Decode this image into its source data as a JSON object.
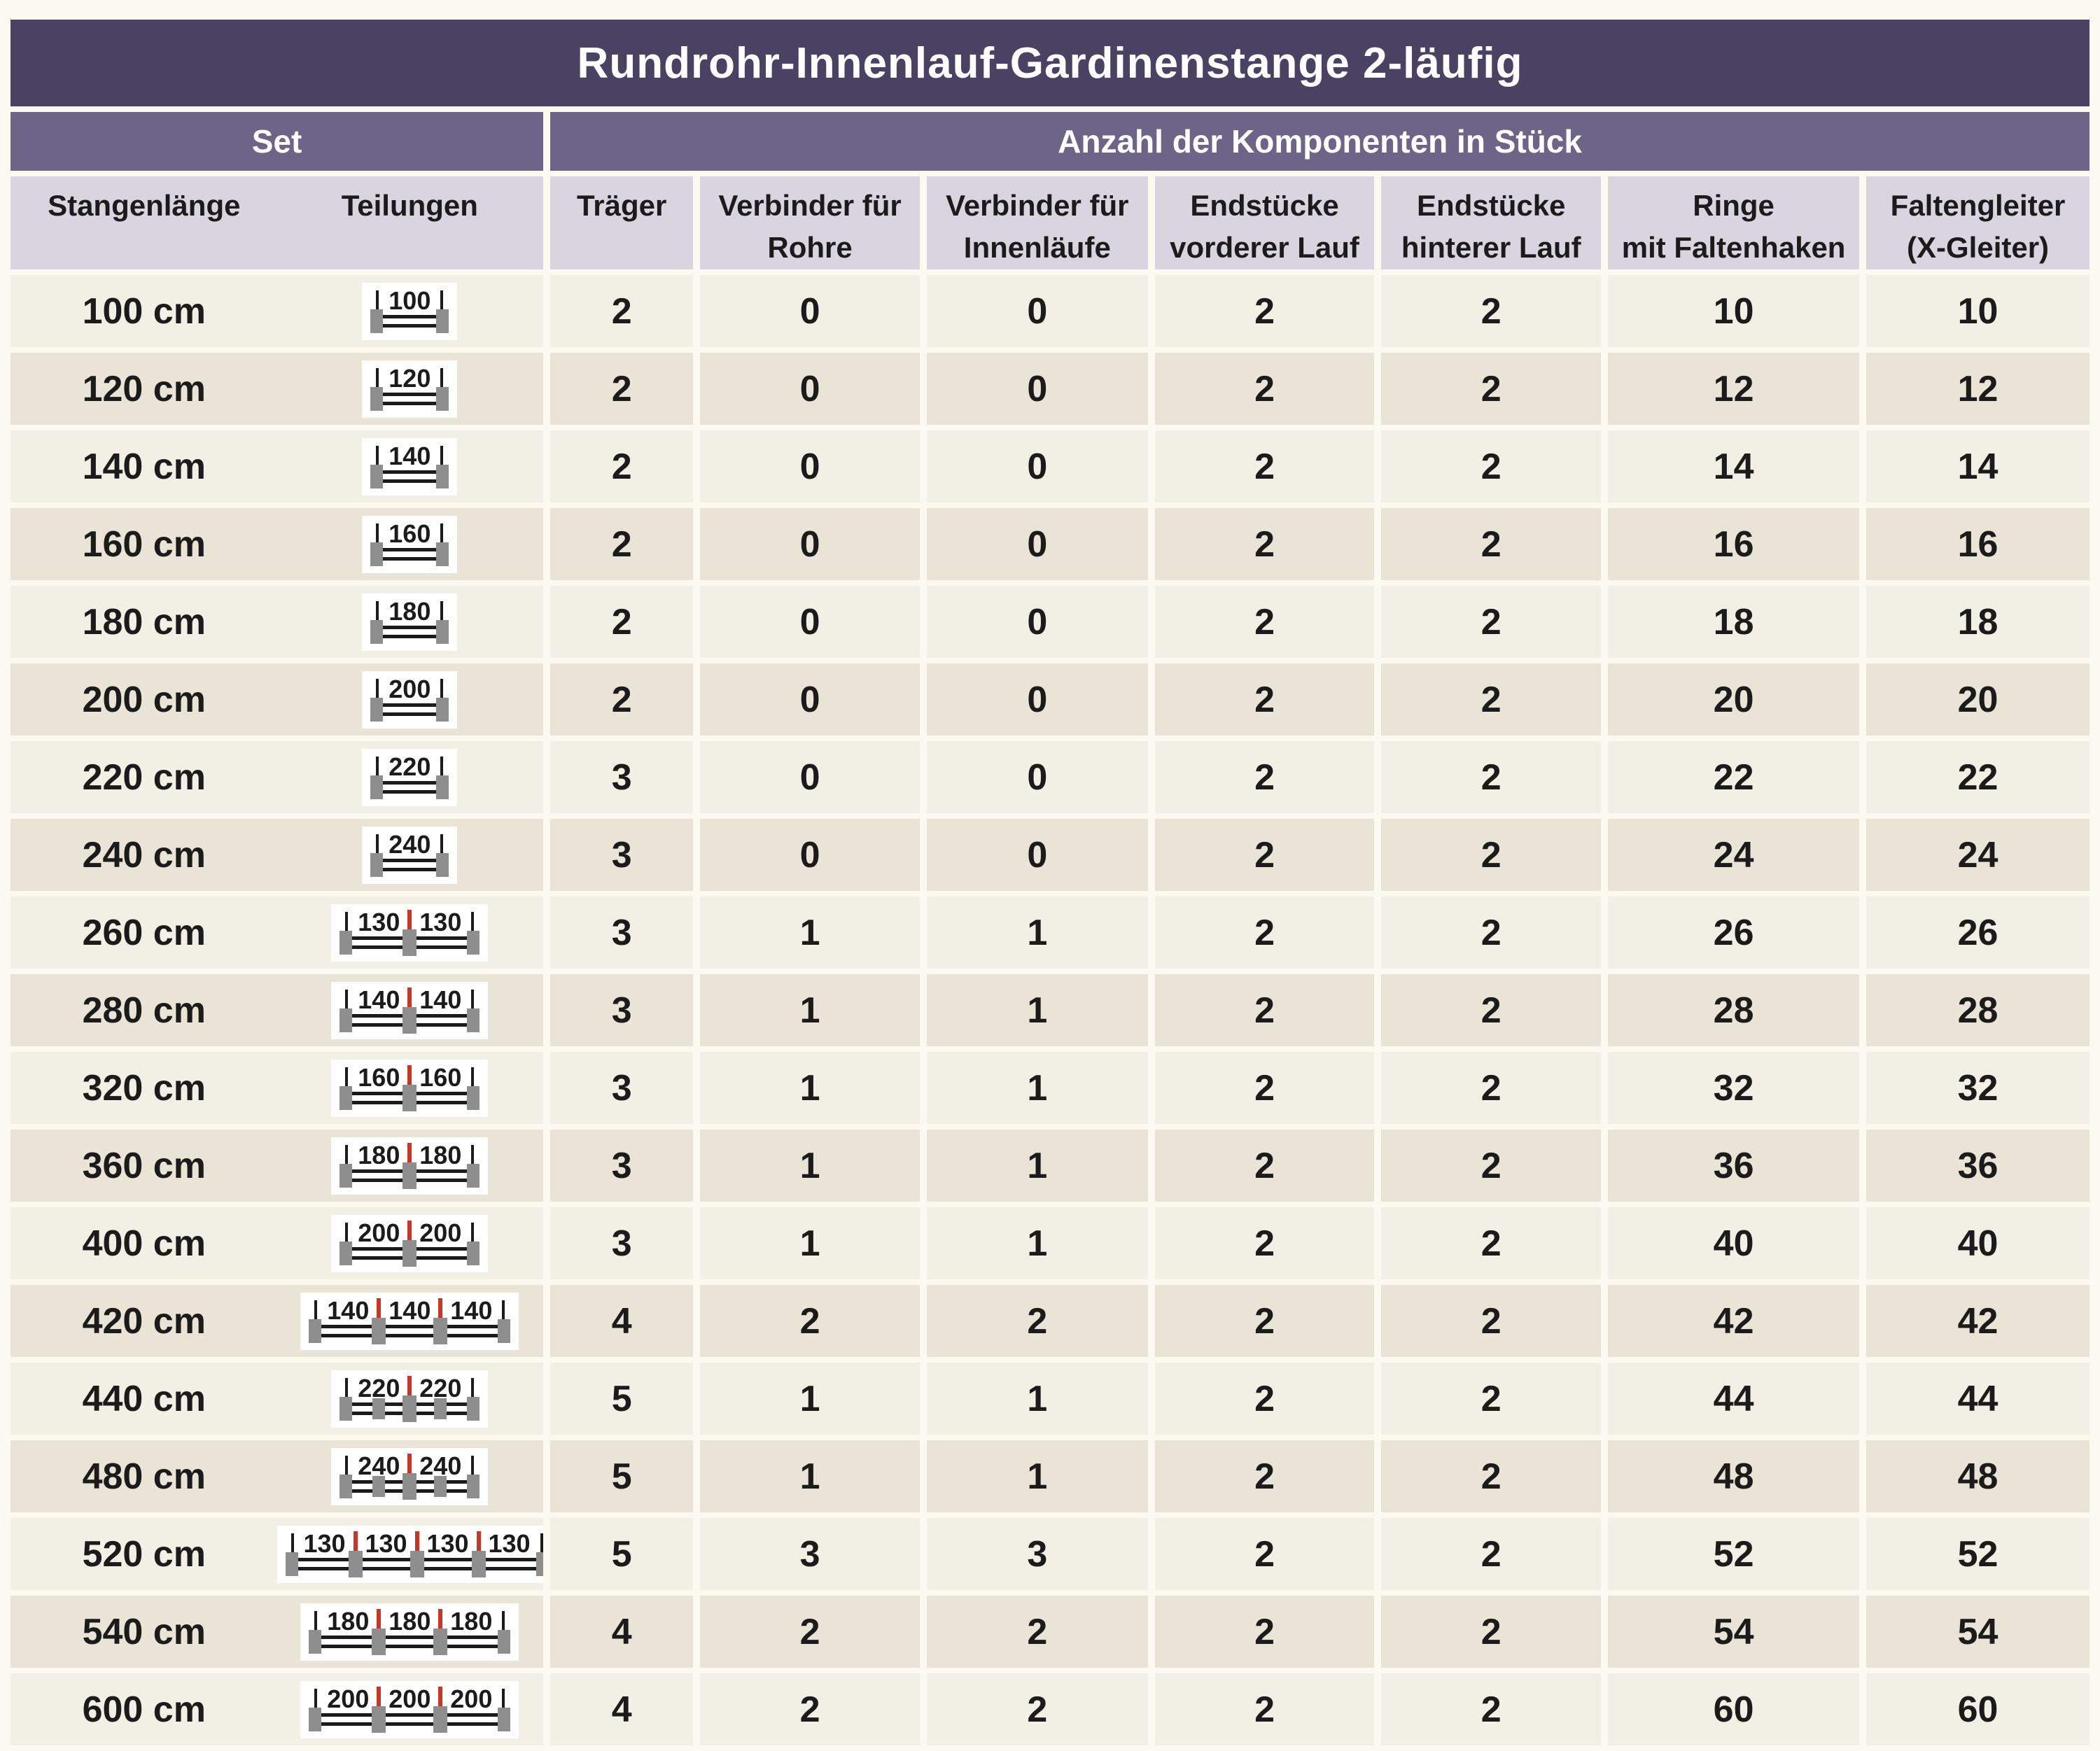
{
  "title": "Rundrohr-Innenlauf-Gardinenstange 2-läufig",
  "header_bands": {
    "set": "Set",
    "components": "Anzahl der Komponenten in Stück"
  },
  "set_columns": {
    "length": "Stangenlänge",
    "divisions": "Teilungen"
  },
  "component_columns": [
    {
      "line1": "Träger",
      "line2": ""
    },
    {
      "line1": "Verbinder für",
      "line2": "Rohre"
    },
    {
      "line1": "Verbinder für",
      "line2": "Innenläufe"
    },
    {
      "line1": "Endstücke",
      "line2": "vorderer Lauf"
    },
    {
      "line1": "Endstücke",
      "line2": "hinterer Lauf"
    },
    {
      "line1": "Ringe",
      "line2": "mit Faltenhaken"
    },
    {
      "line1": "Faltengleiter",
      "line2": "(X-Gleiter)"
    }
  ],
  "chart_data": {
    "type": "table",
    "title": "Rundrohr-Innenlauf-Gardinenstange 2-läufig",
    "column_groups": [
      "Set",
      "Anzahl der Komponenten in Stück"
    ],
    "count_columns": [
      "Träger",
      "Verbinder für Rohre",
      "Verbinder für Innenläufe",
      "Endstücke vorderer Lauf",
      "Endstücke hinterer Lauf",
      "Ringe mit Faltenhaken",
      "Faltengleiter (X-Gleiter)"
    ],
    "rows": [
      {
        "length": "100 cm",
        "segments": [
          100
        ],
        "mid_supports": false,
        "counts": [
          2,
          0,
          0,
          2,
          2,
          10,
          10
        ]
      },
      {
        "length": "120 cm",
        "segments": [
          120
        ],
        "mid_supports": false,
        "counts": [
          2,
          0,
          0,
          2,
          2,
          12,
          12
        ]
      },
      {
        "length": "140 cm",
        "segments": [
          140
        ],
        "mid_supports": false,
        "counts": [
          2,
          0,
          0,
          2,
          2,
          14,
          14
        ]
      },
      {
        "length": "160 cm",
        "segments": [
          160
        ],
        "mid_supports": false,
        "counts": [
          2,
          0,
          0,
          2,
          2,
          16,
          16
        ]
      },
      {
        "length": "180 cm",
        "segments": [
          180
        ],
        "mid_supports": false,
        "counts": [
          2,
          0,
          0,
          2,
          2,
          18,
          18
        ]
      },
      {
        "length": "200 cm",
        "segments": [
          200
        ],
        "mid_supports": false,
        "counts": [
          2,
          0,
          0,
          2,
          2,
          20,
          20
        ]
      },
      {
        "length": "220 cm",
        "segments": [
          220
        ],
        "mid_supports": false,
        "counts": [
          3,
          0,
          0,
          2,
          2,
          22,
          22
        ]
      },
      {
        "length": "240 cm",
        "segments": [
          240
        ],
        "mid_supports": false,
        "counts": [
          3,
          0,
          0,
          2,
          2,
          24,
          24
        ]
      },
      {
        "length": "260 cm",
        "segments": [
          130,
          130
        ],
        "mid_supports": false,
        "counts": [
          3,
          1,
          1,
          2,
          2,
          26,
          26
        ]
      },
      {
        "length": "280 cm",
        "segments": [
          140,
          140
        ],
        "mid_supports": false,
        "counts": [
          3,
          1,
          1,
          2,
          2,
          28,
          28
        ]
      },
      {
        "length": "320 cm",
        "segments": [
          160,
          160
        ],
        "mid_supports": false,
        "counts": [
          3,
          1,
          1,
          2,
          2,
          32,
          32
        ]
      },
      {
        "length": "360 cm",
        "segments": [
          180,
          180
        ],
        "mid_supports": false,
        "counts": [
          3,
          1,
          1,
          2,
          2,
          36,
          36
        ]
      },
      {
        "length": "400 cm",
        "segments": [
          200,
          200
        ],
        "mid_supports": false,
        "counts": [
          3,
          1,
          1,
          2,
          2,
          40,
          40
        ]
      },
      {
        "length": "420 cm",
        "segments": [
          140,
          140,
          140
        ],
        "mid_supports": false,
        "counts": [
          4,
          2,
          2,
          2,
          2,
          42,
          42
        ]
      },
      {
        "length": "440 cm",
        "segments": [
          220,
          220
        ],
        "mid_supports": true,
        "counts": [
          5,
          1,
          1,
          2,
          2,
          44,
          44
        ]
      },
      {
        "length": "480 cm",
        "segments": [
          240,
          240
        ],
        "mid_supports": true,
        "counts": [
          5,
          1,
          1,
          2,
          2,
          48,
          48
        ]
      },
      {
        "length": "520 cm",
        "segments": [
          130,
          130,
          130,
          130
        ],
        "mid_supports": false,
        "counts": [
          5,
          3,
          3,
          2,
          2,
          52,
          52
        ]
      },
      {
        "length": "540 cm",
        "segments": [
          180,
          180,
          180
        ],
        "mid_supports": false,
        "counts": [
          4,
          2,
          2,
          2,
          2,
          54,
          54
        ]
      },
      {
        "length": "600 cm",
        "segments": [
          200,
          200,
          200
        ],
        "mid_supports": false,
        "counts": [
          4,
          2,
          2,
          2,
          2,
          60,
          60
        ]
      }
    ]
  },
  "colors": {
    "page_bg": "#FBF9F0",
    "title_bg": "#494263",
    "band_bg": "#6C6588",
    "colhead_bg": "#D8D5E0",
    "row_light": "#F2EFE4",
    "row_dark": "#E9E4D5",
    "text_dark": "#1B1B1B",
    "text_light": "#FFFFFF",
    "rod": "#1B1B1B",
    "gray": "#8E8E8E",
    "red": "#CC3524",
    "diagram_bg": "#FFFFFF"
  }
}
